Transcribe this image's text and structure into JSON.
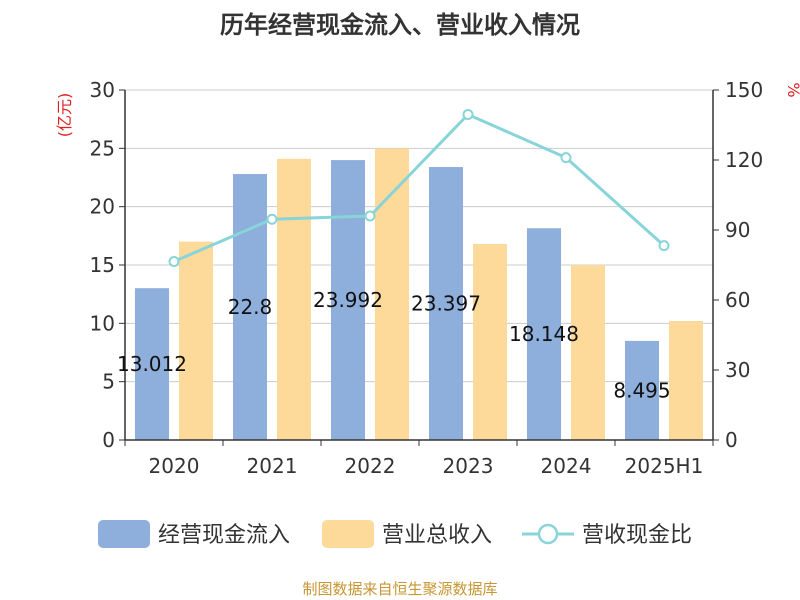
{
  "title": "历年经营现金流入、营业收入情况",
  "source": "制图数据来自恒生聚源数据库",
  "colors": {
    "cash_inflow": "#8eaedb",
    "revenue": "#fdd99a",
    "ratio": "#88d4d8",
    "axis": "#333333",
    "grid": "#cccccc",
    "unit": "#e02020",
    "source": "#c89632"
  },
  "chart_data": {
    "type": "bar",
    "title": "历年经营现金流入、营业收入情况",
    "categories": [
      "2020",
      "2021",
      "2022",
      "2023",
      "2024",
      "2025H1"
    ],
    "y_left": {
      "unit": "(亿元)",
      "range": [
        0,
        30
      ],
      "ticks": [
        0,
        5,
        10,
        15,
        20,
        25,
        30
      ]
    },
    "y_right": {
      "unit": "%",
      "range": [
        0,
        150
      ],
      "ticks": [
        0,
        30,
        60,
        90,
        120,
        150
      ]
    },
    "grid": true,
    "legend_position": "bottom",
    "series": [
      {
        "name": "经营现金流入",
        "type": "bar",
        "axis": "left",
        "values": [
          13.012,
          22.8,
          23.992,
          23.397,
          18.148,
          8.495
        ],
        "labels": [
          "13.012",
          "22.8",
          "23.992",
          "23.397",
          "18.148",
          "8.495"
        ]
      },
      {
        "name": "营业总收入",
        "type": "bar",
        "axis": "left",
        "values": [
          17.0,
          24.1,
          25.0,
          16.8,
          15.0,
          10.2
        ]
      },
      {
        "name": "营收现金比",
        "type": "line",
        "axis": "right",
        "values": [
          76.5,
          94.6,
          96.0,
          139.5,
          121.0,
          83.3
        ]
      }
    ]
  }
}
